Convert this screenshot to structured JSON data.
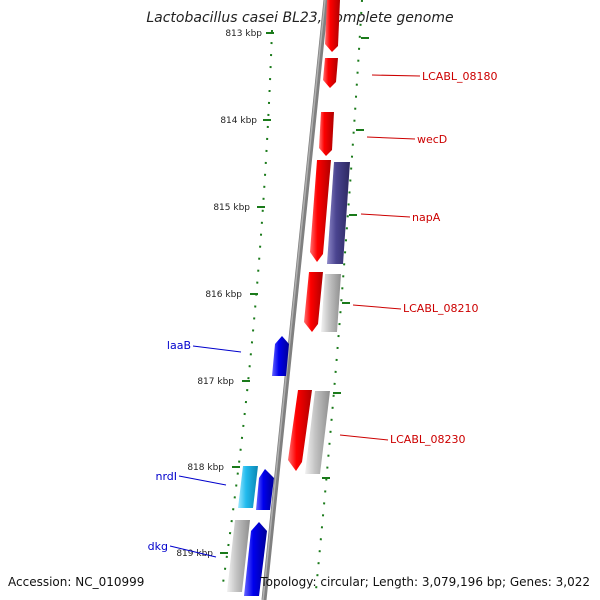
{
  "title": "Lactobacillus casei BL23, complete genome",
  "footer": {
    "accession": "Accession: NC_010999",
    "summary": "Topology: circular; Length: 3,079,196 bp; Genes: 3,022"
  },
  "colors": {
    "backbone": "#808080",
    "ticks": "#1a7a1a",
    "forward_gene": "#ee0000",
    "reverse_gene": "#0000dd",
    "light_gene": "#27b7ee",
    "pseudo_gene": "#bdbdbd",
    "purple_gene": "#4a4490",
    "label_red": "#cc0000",
    "label_blue": "#0000cc"
  },
  "scale_labels": [
    "813 kbp",
    "814 kbp",
    "815 kbp",
    "816 kbp",
    "817 kbp",
    "818 kbp",
    "819 kbp"
  ],
  "gene_labels": [
    {
      "text": "LCABL_08180",
      "color": "red"
    },
    {
      "text": "wecD",
      "color": "red"
    },
    {
      "text": "napA",
      "color": "red"
    },
    {
      "text": "LCABL_08210",
      "color": "red"
    },
    {
      "text": "laaB",
      "color": "blue"
    },
    {
      "text": "LCABL_08230",
      "color": "red"
    },
    {
      "text": "nrdI",
      "color": "blue"
    },
    {
      "text": "dkg",
      "color": "blue"
    }
  ]
}
